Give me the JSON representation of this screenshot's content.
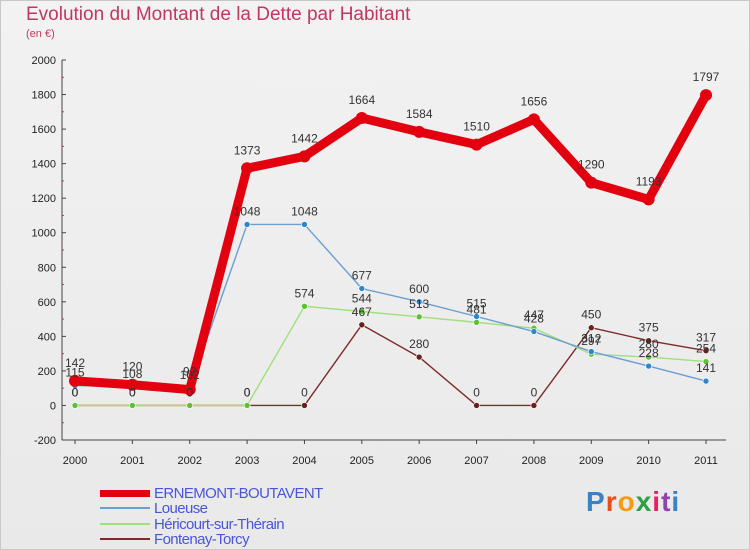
{
  "header": {
    "title": "Evolution du Montant de la Dette par Habitant",
    "subtitle": "(en €)"
  },
  "chart_data": {
    "type": "line",
    "title": "Evolution du Montant de la Dette par Habitant",
    "ylabel": "(en €)",
    "xlabel": "",
    "x": [
      "2000",
      "2001",
      "2002",
      "2003",
      "2004",
      "2005",
      "2006",
      "2007",
      "2008",
      "2009",
      "2010",
      "2011"
    ],
    "ylim": [
      -200,
      2000
    ],
    "yticks": [
      -200,
      0,
      200,
      400,
      600,
      800,
      1000,
      1200,
      1400,
      1600,
      1800,
      2000
    ],
    "grid": false,
    "legend_position": "bottom-left",
    "series": [
      {
        "name": "ERNEMONT-BOUTAVENT",
        "color": "#e3000f",
        "values": [
          142,
          120,
          92,
          1373,
          1442,
          1664,
          1584,
          1510,
          1656,
          1290,
          1193,
          1797
        ],
        "labels": [
          "142",
          "120",
          "92",
          "1373",
          "1442",
          "1664",
          "1584",
          "1510",
          "1656",
          "1290",
          "1193",
          "1797"
        ]
      },
      {
        "name": "Loueuse",
        "color": "#6a9fd0",
        "marker": "#2e86c8",
        "values": [
          115,
          108,
          102,
          1048,
          1048,
          677,
          600,
          515,
          428,
          312,
          228,
          141
        ],
        "labels": [
          "115",
          "108",
          "102",
          "1048",
          "1048",
          "677",
          "600",
          "515",
          "428",
          "312",
          "228",
          "141"
        ]
      },
      {
        "name": "Héricourt-sur-Thérain",
        "color": "#9ee07c",
        "marker": "#5cc233",
        "values": [
          0,
          0,
          0,
          0,
          574,
          544,
          513,
          481,
          447,
          297,
          280,
          254
        ],
        "labels": [
          "0",
          "0",
          "0",
          "0",
          "574",
          "544",
          "513",
          "481",
          "447",
          "297",
          "280",
          "254"
        ]
      },
      {
        "name": "Fontenay-Torcy",
        "color": "#7d2b2b",
        "marker": "#6a1f1f",
        "values": [
          0,
          0,
          0,
          0,
          0,
          467,
          280,
          0,
          0,
          450,
          375,
          317
        ],
        "labels": [
          "0",
          "0",
          "0",
          "0",
          "0",
          "467",
          "280",
          "0",
          "0",
          "450",
          "375",
          "317"
        ]
      }
    ]
  },
  "brand": {
    "letters": [
      "P",
      "r",
      "o",
      "x",
      "i",
      "t",
      "i"
    ],
    "colors": [
      "#3b82c4",
      "#e94e1b",
      "#f39c12",
      "#2f9e44",
      "#e91e63",
      "#8e44ad",
      "#3b82c4"
    ]
  }
}
